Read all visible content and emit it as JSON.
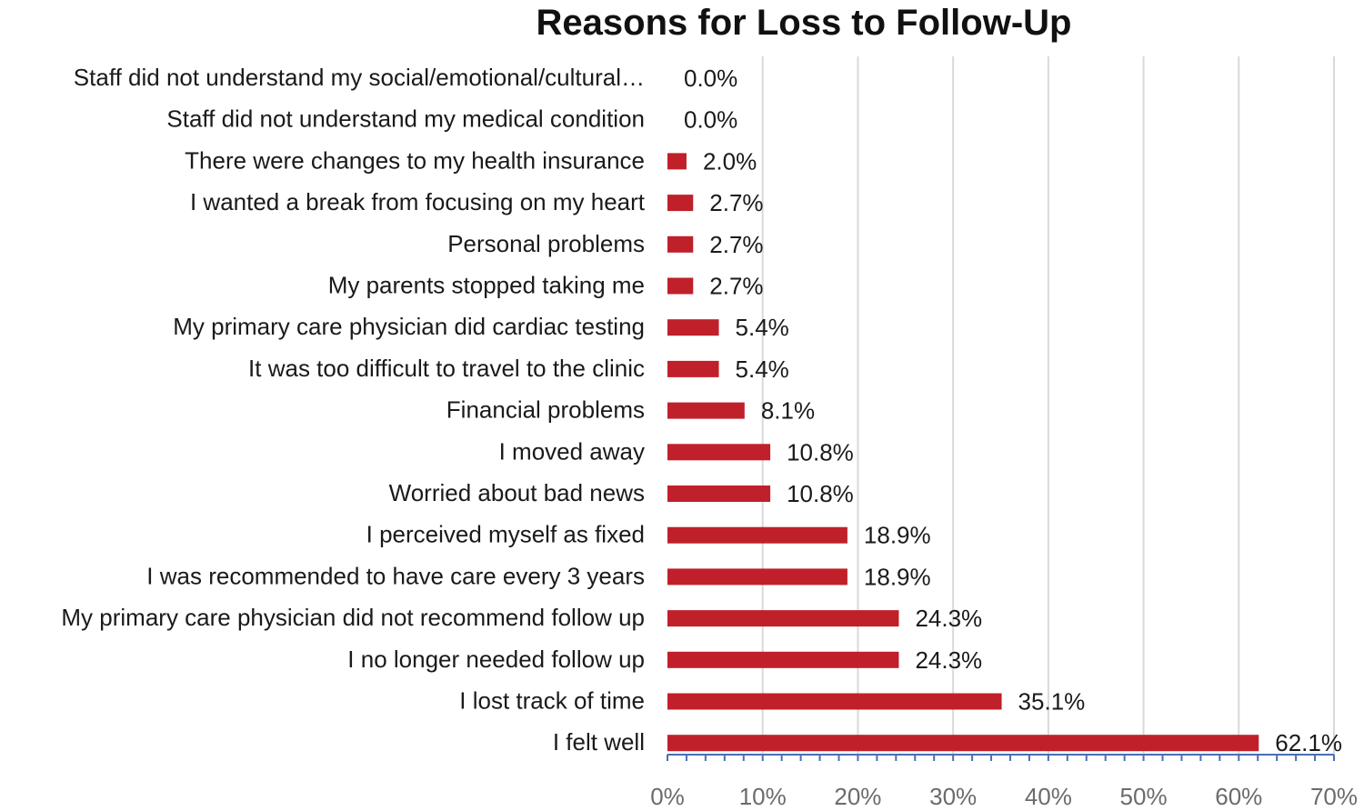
{
  "chart_data": {
    "type": "bar",
    "orientation": "horizontal",
    "title": "Reasons for Loss to Follow-Up",
    "xlabel": "",
    "ylabel": "",
    "xlim": [
      0,
      70
    ],
    "grid": true,
    "bar_color": "#c0202a",
    "axis_color": "#4a6fb5",
    "grid_color": "#d9d9d9",
    "categories": [
      "Staff did not understand my social/emotional/cultural…",
      "Staff did not understand my medical condition",
      "There were changes to my health insurance",
      "I wanted a break from focusing on my heart",
      "Personal problems",
      "My parents stopped taking me",
      "My primary care physician did cardiac testing",
      "It was too difficult to travel to the clinic",
      "Financial problems",
      "I moved away",
      "Worried about bad news",
      "I perceived myself as fixed",
      "I was recommended to have care every 3 years",
      "My primary care physician did not recommend follow up",
      "I no longer needed follow up",
      "I lost track of time",
      "I felt well"
    ],
    "values": [
      0.0,
      0.0,
      2.0,
      2.7,
      2.7,
      2.7,
      5.4,
      5.4,
      8.1,
      10.8,
      10.8,
      18.9,
      18.9,
      24.3,
      24.3,
      35.1,
      62.1
    ],
    "value_labels": [
      "0.0%",
      "0.0%",
      "2.0%",
      "2.7%",
      "2.7%",
      "2.7%",
      "5.4%",
      "5.4%",
      "8.1%",
      "10.8%",
      "10.8%",
      "18.9%",
      "18.9%",
      "24.3%",
      "24.3%",
      "35.1%",
      "62.1%"
    ],
    "x_ticks": [
      0,
      10,
      20,
      30,
      40,
      50,
      60,
      70
    ],
    "x_tick_labels": [
      "0%",
      "10%",
      "20%",
      "30%",
      "40%",
      "50%",
      "60%",
      "70%"
    ]
  }
}
